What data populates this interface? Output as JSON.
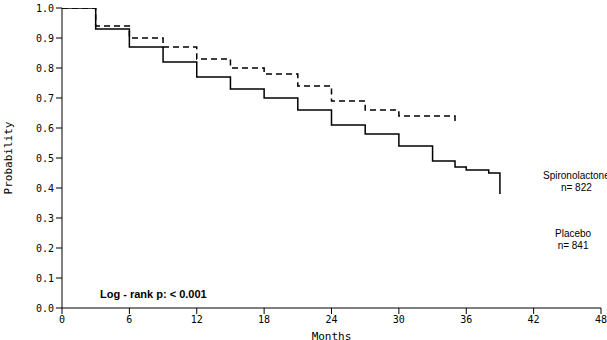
{
  "chart_data": {
    "type": "line",
    "x_label": "Months",
    "y_label": "Probability",
    "annotation": "Log - rank p: < 0.001",
    "x": [
      0,
      3,
      6,
      9,
      12,
      15,
      18,
      21,
      24,
      27,
      30,
      33,
      35,
      36,
      38,
      39
    ],
    "series": [
      {
        "name": "Spironolactone",
        "note": "n= 822",
        "color": "#000000",
        "line_style": "dashed",
        "marker": "none",
        "values": [
          1.0,
          0.94,
          0.9,
          0.87,
          0.83,
          0.8,
          0.78,
          0.74,
          0.69,
          0.66,
          0.64,
          0.64,
          0.61,
          null,
          null,
          null
        ]
      },
      {
        "name": "Placebo",
        "note": "n= 841",
        "color": "#000000",
        "line_style": "solid",
        "marker": "none",
        "values": [
          1.0,
          0.93,
          0.87,
          0.82,
          0.77,
          0.73,
          0.7,
          0.66,
          0.61,
          0.58,
          0.54,
          0.49,
          0.47,
          0.46,
          0.45,
          0.38
        ]
      }
    ],
    "xlim": [
      0,
      48
    ],
    "xticks": [
      0,
      6,
      12,
      18,
      24,
      30,
      36,
      42,
      48
    ],
    "ylim": [
      0,
      1
    ],
    "yticks": [
      {
        "value": 0,
        "label": "0.0"
      },
      {
        "value": 0.1,
        "label": "0.1"
      },
      {
        "value": 0.2,
        "label": "0.2"
      },
      {
        "value": 0.3,
        "label": "0.3"
      },
      {
        "value": 0.4,
        "label": "0.4"
      },
      {
        "value": 0.5,
        "label": "0.5"
      },
      {
        "value": 0.6,
        "label": "0.6"
      },
      {
        "value": 0.7,
        "label": "0.7"
      },
      {
        "value": 0.8,
        "label": "0.8"
      },
      {
        "value": 0.9,
        "label": "0.9"
      },
      {
        "value": 1,
        "label": "1.0"
      }
    ],
    "grid": false
  }
}
